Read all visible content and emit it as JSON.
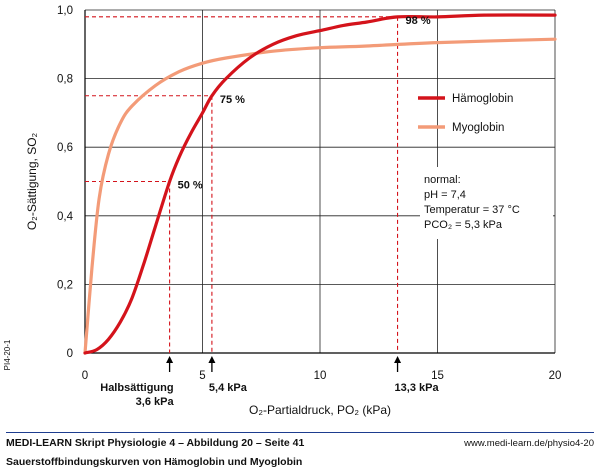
{
  "side_code": "PI4-20-1",
  "footer": {
    "title": "MEDI-LEARN Skript Physiologie 4 – Abbildung 20 – Seite 41",
    "url": "www.medi-learn.de/physio4-20",
    "caption": "Sauerstoffbindungskurven von Hämoglobin und Myoglobin"
  },
  "colors": {
    "haemoglobin": "#d4131b",
    "myoglobin": "#f39b78",
    "guide": "#d4131b",
    "axis": "#000000",
    "footer_rule": "#1d3d8f"
  },
  "chart_data": {
    "type": "line",
    "xlabel": "O₂-Partialdruck, PO₂ (kPa)",
    "ylabel": "O₂-Sättigung, SO₂",
    "xlim": [
      0,
      20
    ],
    "ylim": [
      0,
      1.0
    ],
    "x_ticks": [
      0,
      5,
      10,
      15,
      20
    ],
    "x_tick_labels": [
      "0",
      "5",
      "10",
      "15",
      "20"
    ],
    "y_ticks": [
      0,
      0.2,
      0.4,
      0.6,
      0.8,
      1.0
    ],
    "y_tick_labels": [
      "0",
      "0,2",
      "0,4",
      "0,6",
      "0,8",
      "1,0"
    ],
    "grid": true,
    "legend_position": "right",
    "series": [
      {
        "name": "Hämoglobin",
        "color": "#d4131b",
        "x": [
          0,
          0.5,
          1,
          1.5,
          2,
          2.5,
          3,
          3.6,
          4,
          4.5,
          5,
          5.4,
          6,
          7,
          8,
          9,
          10,
          11,
          12,
          13.3,
          15,
          17,
          20
        ],
        "y": [
          0,
          0.01,
          0.04,
          0.09,
          0.16,
          0.26,
          0.37,
          0.5,
          0.57,
          0.64,
          0.7,
          0.75,
          0.8,
          0.86,
          0.9,
          0.925,
          0.94,
          0.955,
          0.965,
          0.98,
          0.98,
          0.985,
          0.985
        ]
      },
      {
        "name": "Myoglobin",
        "color": "#f39b78",
        "x": [
          0,
          0.3,
          0.6,
          1,
          1.5,
          2,
          3,
          4,
          5,
          6,
          8,
          10,
          12,
          15,
          20
        ],
        "y": [
          0,
          0.25,
          0.45,
          0.58,
          0.67,
          0.72,
          0.78,
          0.82,
          0.845,
          0.86,
          0.88,
          0.89,
          0.895,
          0.905,
          0.915
        ]
      }
    ],
    "markers": [
      {
        "x": 3.6,
        "y": 0.5,
        "label": "50 %"
      },
      {
        "x": 5.4,
        "y": 0.75,
        "label": "75 %"
      },
      {
        "x": 13.3,
        "y": 0.98,
        "label": "98 %"
      }
    ],
    "arrow_labels": [
      {
        "x": 3.6,
        "lines": [
          "Halbsättigung",
          "3,6 kPa"
        ]
      },
      {
        "x": 5.4,
        "lines": [
          "5,4 kPa"
        ]
      },
      {
        "x": 13.3,
        "lines": [
          "13,3 kPa"
        ]
      }
    ],
    "annotation": {
      "lines": [
        "normal:",
        "pH = 7,4",
        "Temperatur = 37 °C",
        "PCO₂ = 5,3 kPa"
      ]
    }
  }
}
